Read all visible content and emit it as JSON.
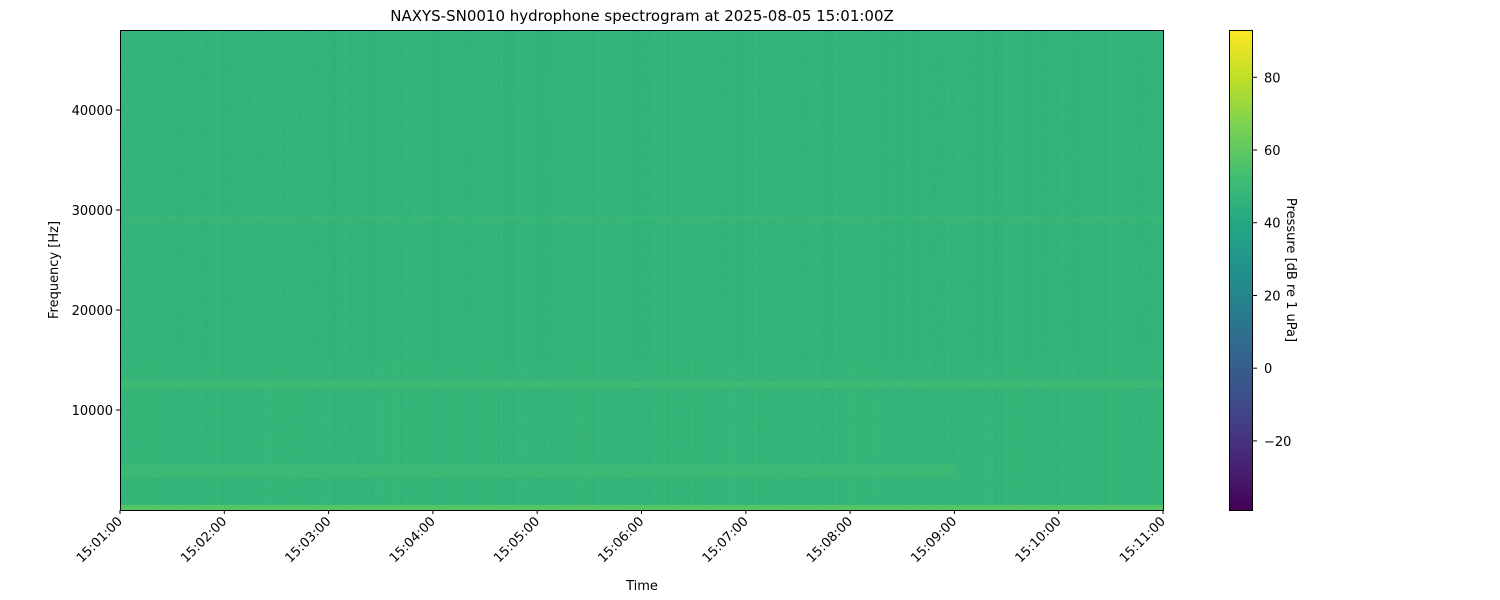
{
  "chart_data": {
    "type": "heatmap",
    "title": "NAXYS-SN0010 hydrophone spectrogram at 2025-08-05 15:01:00Z",
    "xlabel": "Time",
    "ylabel": "Frequency [Hz]",
    "x_ticks": [
      "15:01:00",
      "15:02:00",
      "15:03:00",
      "15:04:00",
      "15:05:00",
      "15:06:00",
      "15:07:00",
      "15:08:00",
      "15:09:00",
      "15:10:00",
      "15:11:00"
    ],
    "xlim": [
      "15:01:00",
      "15:11:00"
    ],
    "y_ticks": [
      10000,
      20000,
      30000,
      40000
    ],
    "ylim": [
      0,
      48000
    ],
    "colormap": "viridis",
    "colorbar": {
      "label": "Pressure [dB re 1 uPa]",
      "ticks": [
        -20,
        0,
        20,
        40,
        60,
        80
      ],
      "range": [
        -39,
        93
      ]
    },
    "background_level_db": 47,
    "features": [
      {
        "name": "low-frequency band",
        "freq_range": [
          0,
          500
        ],
        "level_db": 58
      },
      {
        "name": "band near 12.6 kHz",
        "freq_range": [
          12300,
          12900
        ],
        "level_db": 51
      },
      {
        "name": "band near 4 kHz",
        "freq_range": [
          3300,
          4600
        ],
        "time_range": [
          "15:01:00",
          "15:09:00"
        ],
        "level_db": 50
      },
      {
        "name": "band near 29 kHz",
        "freq_range": [
          28900,
          29400
        ],
        "level_db": 48.5
      }
    ]
  }
}
